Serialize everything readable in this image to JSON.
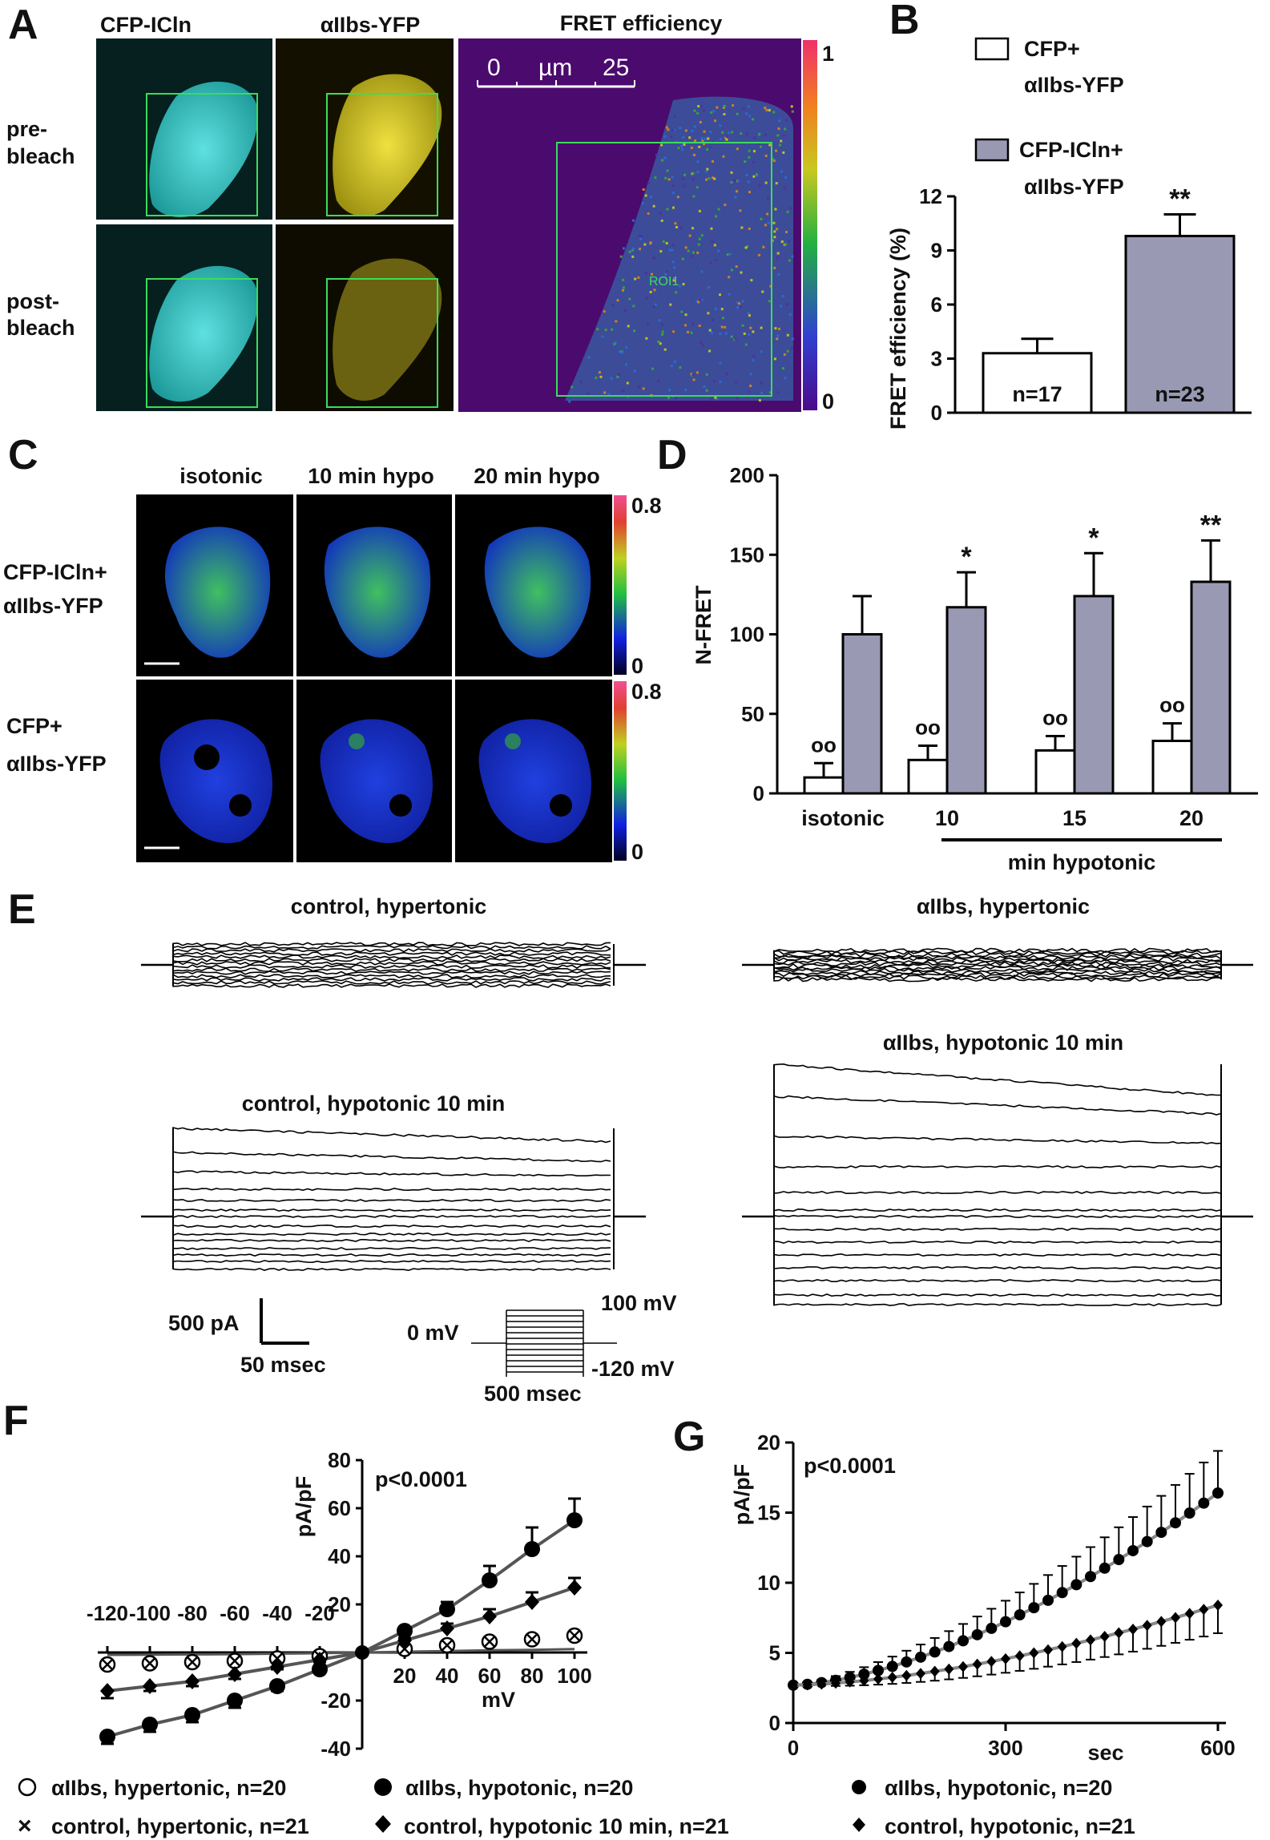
{
  "panels": [
    "A",
    "B",
    "C",
    "D",
    "E",
    "F",
    "G"
  ],
  "panel_a": {
    "columns": [
      "CFP-ICln",
      "αIIbs-YFP",
      "FRET efficiency"
    ],
    "rows": [
      "pre-\nbleach",
      "post-\nbleach"
    ],
    "row1": [
      "pre-",
      "bleach"
    ],
    "row2": [
      "post-",
      "bleach"
    ],
    "roi_label": "ROI1",
    "scale_ticks": [
      "0",
      "µm",
      "25"
    ],
    "colorbar_max": "1",
    "colorbar_min": "0",
    "colors": {
      "cyan": "#33c8c8",
      "yellow": "#e6dc1e",
      "fret_bg": "#4b0a6e",
      "roi": "#3cdc5a"
    }
  },
  "panel_c": {
    "columns": [
      "isotonic",
      "10 min hypo",
      "20 min hypo"
    ],
    "row1": [
      "CFP-ICln+",
      "αIIbs-YFP"
    ],
    "row2": [
      "CFP+",
      "αIIbs-YFP"
    ],
    "colorbar_max": "0.8",
    "colorbar_min": "0"
  },
  "panel_e": {
    "titles": [
      "control, hypertonic",
      "αIIbs, hypertonic",
      "control, hypotonic 10 min",
      "αIIbs, hypotonic 10 min"
    ],
    "scale_current": "500 pA",
    "scale_time": "50 msec",
    "protocol_high": "100 mV",
    "protocol_hold": "0 mV",
    "protocol_low": "-120 mV",
    "protocol_duration": "500 msec"
  },
  "chart_data": [
    {
      "panel": "B",
      "type": "bar",
      "legend": [
        "CFP+\nαIIbs-YFP",
        "CFP-ICln+\nαIIbs-YFP"
      ],
      "legend1": [
        "CFP+",
        "αIIbs-YFP"
      ],
      "legend2": [
        "CFP-ICln+",
        "αIIbs-YFP"
      ],
      "ylabel": "FRET efficiency (%)",
      "ylim": [
        0,
        12
      ],
      "yticks": [
        "0",
        "3",
        "6",
        "9",
        "12"
      ],
      "values": [
        3.3,
        9.8
      ],
      "errors": [
        0.8,
        1.2
      ],
      "n_labels": [
        "n=17",
        "n=23"
      ],
      "significance": [
        "",
        "**"
      ],
      "colors": [
        "#ffffff",
        "#9999b3"
      ]
    },
    {
      "panel": "D",
      "type": "bar",
      "ylabel": "N-FRET",
      "ylim": [
        0,
        200
      ],
      "yticks": [
        "0",
        "50",
        "100",
        "150",
        "200"
      ],
      "categories": [
        "isotonic",
        "10",
        "15",
        "20"
      ],
      "xgroup_label": "min hypotonic",
      "series": [
        {
          "name": "CFP+αIIbs-YFP",
          "values": [
            10,
            21,
            27,
            33
          ],
          "errors": [
            9,
            9,
            9,
            11
          ],
          "color": "#ffffff"
        },
        {
          "name": "CFP-ICln+αIIbs-YFP",
          "values": [
            100,
            117,
            124,
            133
          ],
          "errors": [
            24,
            22,
            27,
            26
          ],
          "color": "#9999b3"
        }
      ],
      "marks_white": [
        "oo",
        "oo",
        "oo",
        "oo"
      ],
      "marks_grey": [
        "",
        "*",
        "*",
        "**"
      ]
    },
    {
      "panel": "F",
      "type": "line",
      "xlabel": "mV",
      "ylabel": "pA/pF",
      "xlim": [
        -120,
        100
      ],
      "ylim": [
        -40,
        80
      ],
      "neg_xticks": [
        "-120",
        "-100",
        "-80",
        "-60",
        "-40",
        "-20"
      ],
      "pos_xticks": [
        "20",
        "40",
        "60",
        "80",
        "100"
      ],
      "yticks": [
        "80",
        "60",
        "40",
        "20",
        "-20",
        "-40"
      ],
      "annotation": "p<0.0001",
      "x": [
        -120,
        -100,
        -80,
        -60,
        -40,
        -20,
        0,
        20,
        40,
        60,
        80,
        100
      ],
      "series": [
        {
          "name": "αIIbs, hypertonic, n=20",
          "marker": "open-circle",
          "values": [
            -5,
            -4.5,
            -4,
            -3.5,
            -2.5,
            -1.5,
            0,
            1.5,
            3,
            4.5,
            5.5,
            7
          ]
        },
        {
          "name": "αIIbs, hypotonic, n=20",
          "marker": "filled-circle",
          "values": [
            -35,
            -30,
            -26,
            -20,
            -14,
            -7,
            0,
            9,
            18,
            30,
            43,
            55
          ],
          "errors": [
            3,
            3,
            3,
            3,
            2,
            1,
            0,
            1,
            3,
            6,
            9,
            9
          ]
        },
        {
          "name": "control, hypertonic, n=21",
          "marker": "cross",
          "values": [
            -5,
            -4.5,
            -4,
            -3.5,
            -2.5,
            -1.5,
            0,
            1.5,
            3,
            4.5,
            5.5,
            7
          ]
        },
        {
          "name": "control, hypotonic 10 min, n=21",
          "marker": "diamond",
          "values": [
            -16,
            -14,
            -12,
            -9,
            -6,
            -3,
            0,
            5,
            10,
            15,
            21,
            27
          ],
          "errors": [
            3,
            2,
            2,
            2,
            1,
            1,
            0,
            1,
            2,
            3,
            4,
            4
          ]
        }
      ]
    },
    {
      "panel": "G",
      "type": "line",
      "xlabel": "sec",
      "ylabel": "pA/pF",
      "xlim": [
        0,
        600
      ],
      "ylim": [
        0,
        20
      ],
      "xticks": [
        "0",
        "300",
        "600"
      ],
      "yticks": [
        "0",
        "5",
        "10",
        "15",
        "20"
      ],
      "annotation": "p<0.0001",
      "series": [
        {
          "name": "αIIbs, hypotonic, n=20",
          "marker": "filled-circle",
          "start": 2.7,
          "end": 16.4,
          "err_end": 3.0
        },
        {
          "name": "control, hypotonic, n=21",
          "marker": "diamond",
          "start": 2.7,
          "end": 8.4,
          "err_end": 2.0
        }
      ]
    }
  ]
}
